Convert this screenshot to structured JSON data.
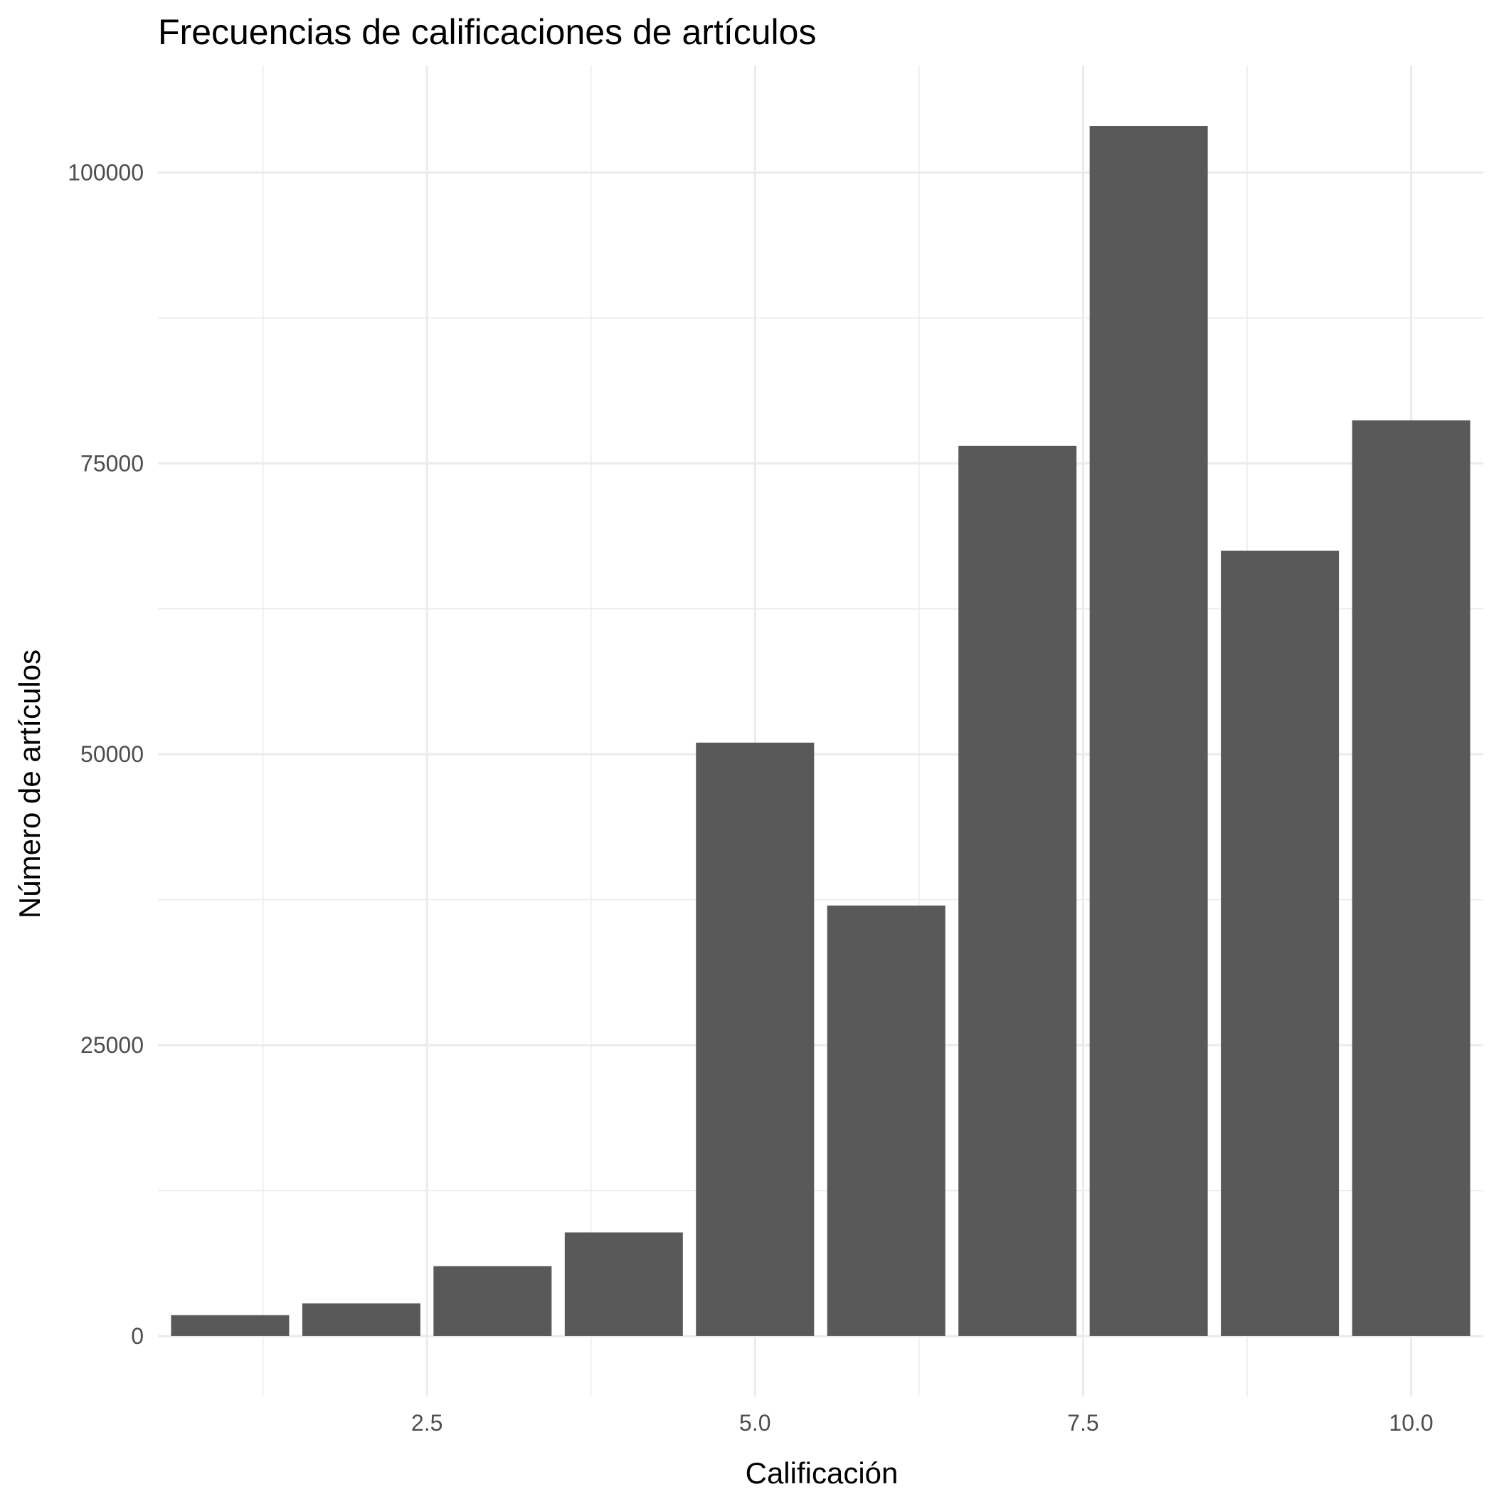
{
  "chart_data": {
    "type": "bar",
    "title": "Frecuencias de calificaciones de artículos",
    "xlabel": "Calificación",
    "ylabel": "Número de artículos",
    "x": [
      1,
      2,
      3,
      4,
      5,
      6,
      7,
      8,
      9,
      10
    ],
    "values": [
      1800,
      2800,
      6000,
      8900,
      51000,
      37000,
      76500,
      104000,
      67500,
      78700
    ],
    "xlim": [
      0.45,
      10.55
    ],
    "ylim": [
      -5200,
      109200
    ],
    "xticks": [
      2.5,
      5.0,
      7.5,
      10.0
    ],
    "xtick_labels": [
      "2.5",
      "5.0",
      "7.5",
      "10.0"
    ],
    "yticks": [
      0,
      25000,
      50000,
      75000,
      100000
    ],
    "ytick_labels": [
      "0",
      "25000",
      "50000",
      "75000",
      "100000"
    ],
    "grid": true,
    "bar_color": "#595959",
    "grid_color": "#ebebeb",
    "background": "#ffffff"
  }
}
